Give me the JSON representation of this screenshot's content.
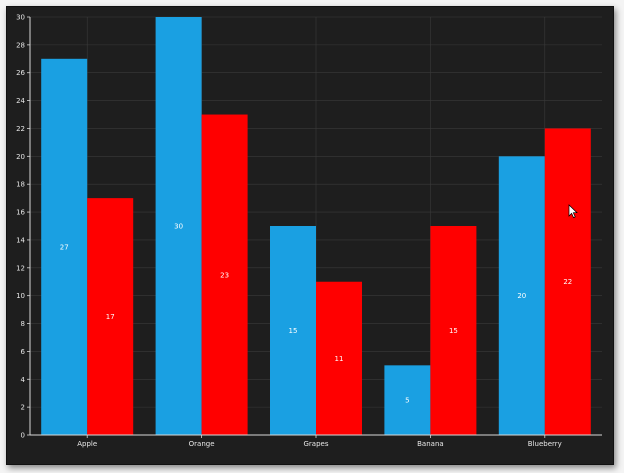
{
  "chart_data": {
    "type": "bar",
    "categories": [
      "Apple",
      "Orange",
      "Grapes",
      "Banana",
      "Blueberry"
    ],
    "series": [
      {
        "values": [
          27,
          30,
          15,
          5,
          20
        ],
        "color": "#1aa0e2"
      },
      {
        "values": [
          17,
          23,
          11,
          15,
          22
        ],
        "color": "#ff0000"
      }
    ],
    "ylim": [
      0,
      30
    ],
    "ytick_step": 2,
    "grid": true,
    "data_labels": true,
    "background": "#1e1e1e",
    "grid_color": "#3a3a3a",
    "axis_color": "#d8d8d8",
    "text_color": "#e8e8e8"
  },
  "cursor": {
    "icon": "mouse-pointer-icon"
  }
}
